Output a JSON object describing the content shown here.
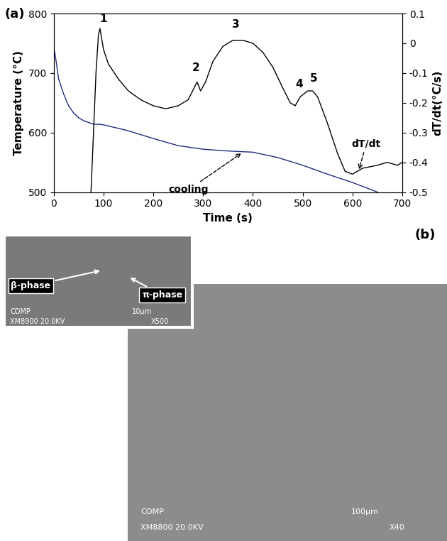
{
  "chart_data": {
    "type": "line",
    "title": "(a)",
    "x_label": "Time (s)",
    "y_label": "Temperature (°C)",
    "y2_label": "dT/dt(°C/s)",
    "xlim": [
      0,
      700
    ],
    "xticks": [
      0,
      100,
      200,
      300,
      400,
      500,
      600,
      700
    ],
    "ylim": [
      500,
      800
    ],
    "yticks": [
      500,
      600,
      700,
      800
    ],
    "y2lim": [
      -0.5,
      0.1
    ],
    "y2ticks": [
      -0.5,
      -0.4,
      -0.3,
      -0.2,
      -0.1,
      0,
      0.1
    ],
    "series": [
      {
        "color": "#1f2a80",
        "axis": "y",
        "x": [
          0,
          5,
          10,
          20,
          30,
          40,
          50,
          60,
          70,
          80,
          90,
          100,
          150,
          200,
          250,
          300,
          350,
          400,
          450,
          500,
          550,
          600,
          650
        ],
        "values": [
          745,
          720,
          690,
          665,
          645,
          633,
          625,
          620,
          617,
          614,
          614,
          613,
          603,
          590,
          578,
          572,
          569,
          567,
          558,
          545,
          530,
          516,
          500
        ]
      },
      {
        "color": "#000000",
        "axis": "y2",
        "x": [
          75,
          80,
          85,
          90,
          93,
          100,
          110,
          130,
          150,
          175,
          200,
          225,
          250,
          270,
          282,
          288,
          295,
          305,
          320,
          340,
          360,
          380,
          400,
          420,
          440,
          460,
          475,
          485,
          495,
          510,
          520,
          530,
          550,
          570,
          585,
          600,
          620,
          650,
          670,
          690,
          700
        ],
        "values": [
          -0.5,
          -0.3,
          -0.1,
          0.03,
          0.05,
          -0.02,
          -0.07,
          -0.12,
          -0.16,
          -0.19,
          -0.21,
          -0.22,
          -0.21,
          -0.19,
          -0.15,
          -0.13,
          -0.16,
          -0.13,
          -0.06,
          -0.01,
          0.01,
          0.01,
          0.0,
          -0.03,
          -0.08,
          -0.15,
          -0.2,
          -0.21,
          -0.18,
          -0.16,
          -0.16,
          -0.18,
          -0.27,
          -0.37,
          -0.43,
          -0.44,
          -0.42,
          -0.41,
          -0.4,
          -0.41,
          -0.4
        ]
      }
    ],
    "peak_labels": [
      {
        "text": "1",
        "x": 100,
        "y": 0.065,
        "axis": "y2"
      },
      {
        "text": "2",
        "x": 285,
        "y": -0.1,
        "axis": "y2"
      },
      {
        "text": "3",
        "x": 365,
        "y": 0.045,
        "axis": "y2"
      },
      {
        "text": "4",
        "x": 493,
        "y": -0.155,
        "axis": "y2"
      },
      {
        "text": "5",
        "x": 522,
        "y": -0.135,
        "axis": "y2"
      }
    ],
    "annotations": [
      {
        "text": "cooling",
        "x": 380,
        "y": 567,
        "axis": "y"
      },
      {
        "text": "dT/dt",
        "x": 612,
        "y": -0.43,
        "axis": "y2"
      }
    ]
  },
  "image": {
    "label": "(b)",
    "inset": {
      "labels": [
        "β-phase",
        "π-phase"
      ],
      "footer": [
        "COMP",
        "XM8900 20.0KV",
        "10μm",
        "X500"
      ]
    },
    "main": {
      "footer": [
        "COMP",
        "XM8800 20.0KV",
        "100μm",
        "X40"
      ]
    }
  }
}
